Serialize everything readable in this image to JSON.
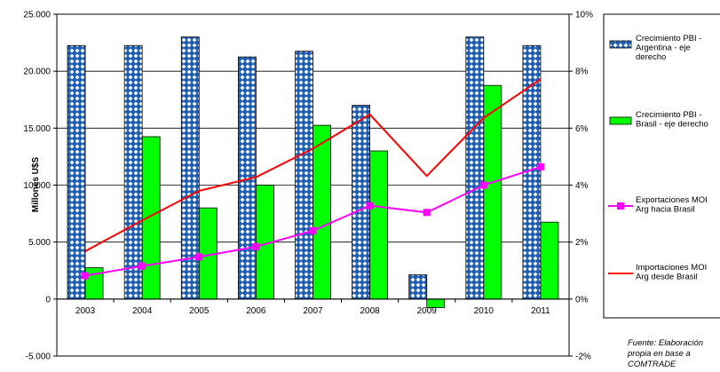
{
  "chart_data": {
    "type": "bar",
    "categories": [
      "2003",
      "2004",
      "2005",
      "2006",
      "2007",
      "2008",
      "2009",
      "2010",
      "2011"
    ],
    "series": [
      {
        "name": "Crecimiento PBI - Argentina - eje derecho",
        "type": "bar",
        "axis": "right",
        "values": [
          8.9,
          8.9,
          9.2,
          8.5,
          8.7,
          6.8,
          0.85,
          9.2,
          8.9
        ],
        "color": "#1f5fb3",
        "pattern": "diamonds"
      },
      {
        "name": "Crecimiento PBI - Brasil - eje derecho",
        "type": "bar",
        "axis": "right",
        "values": [
          1.1,
          5.7,
          3.2,
          4.0,
          6.1,
          5.2,
          -0.3,
          7.5,
          2.7
        ],
        "color": "#00ff00"
      },
      {
        "name": "Exportaciones MOI Arg hacia Brasil",
        "type": "line",
        "axis": "left",
        "values": [
          2050,
          2900,
          3700,
          4600,
          6000,
          8200,
          7600,
          10000,
          11600
        ],
        "color": "#ff00ff",
        "marker": "square"
      },
      {
        "name": "Importaciones MOI Arg desde Brasil",
        "type": "line",
        "axis": "left",
        "values": [
          4200,
          6900,
          9500,
          10700,
          13200,
          16200,
          10800,
          15900,
          19300
        ],
        "color": "#ff0000"
      }
    ],
    "ylabel": "Millones U$S",
    "ylim": [
      -5000,
      25000
    ],
    "yticks": [
      "-5.000",
      "0",
      "5.000",
      "10.000",
      "15.000",
      "20.000",
      "25.000"
    ],
    "y2lim": [
      -2,
      10
    ],
    "y2ticks": [
      "-2%",
      "0%",
      "2%",
      "4%",
      "6%",
      "8%",
      "10%"
    ],
    "grid": true,
    "legend_position": "right",
    "note": [
      "Fuente: Elaboración",
      "propia en base a",
      "COMTRADE"
    ]
  }
}
